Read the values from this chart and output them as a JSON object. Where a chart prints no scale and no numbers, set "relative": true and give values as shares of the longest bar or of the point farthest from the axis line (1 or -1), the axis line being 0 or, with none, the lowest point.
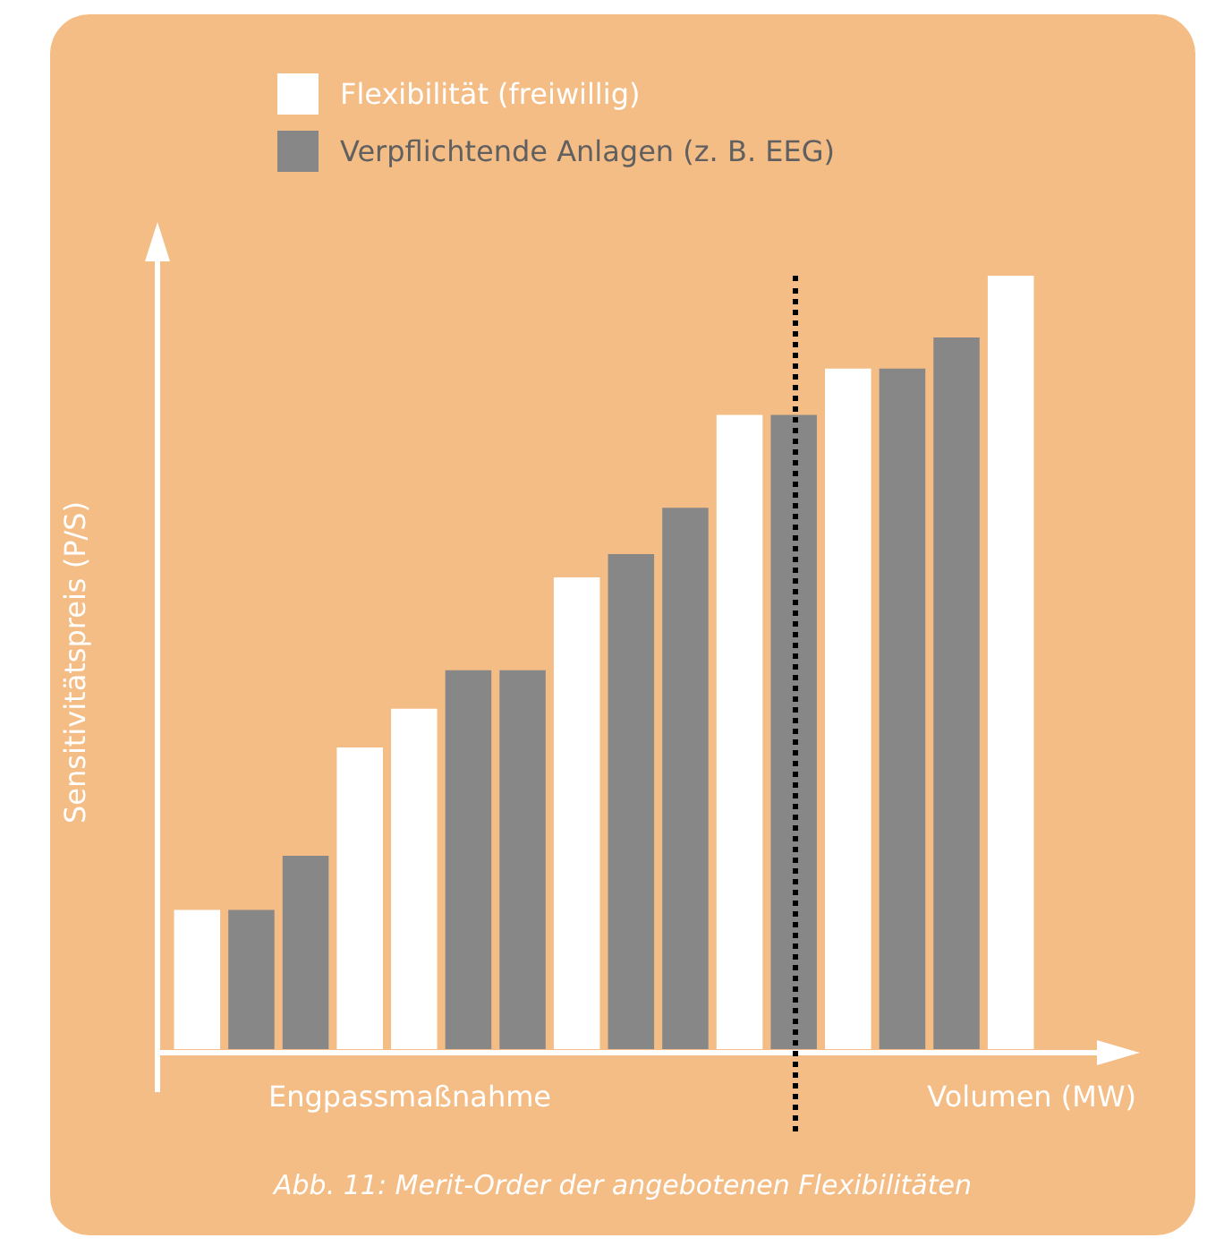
{
  "chart_data": {
    "type": "bar",
    "relative": true,
    "ylabel": "Sensitivitätspreis (P/S)",
    "xlabel": "Volumen (MW)",
    "categories": [
      null,
      null,
      null,
      null,
      null,
      null,
      null,
      null,
      null,
      null,
      null,
      null,
      null,
      null,
      null,
      null
    ],
    "series": [
      {
        "name": "Flexibilität (freiwillig)",
        "color": "#ffffff",
        "values": [
          0.18,
          null,
          null,
          0.39,
          0.44,
          null,
          null,
          0.61,
          null,
          null,
          0.82,
          null,
          0.88,
          null,
          null,
          1
        ]
      },
      {
        "name": "Verpflichtende Anlagen (z. B. EEG)",
        "color": "#878787",
        "values": [
          null,
          0.18,
          0.25,
          null,
          null,
          0.49,
          0.49,
          null,
          0.64,
          0.7,
          null,
          0.82,
          null,
          0.88,
          0.92,
          null
        ]
      }
    ],
    "legend": "top",
    "stacked": true,
    "annotations": [
      "Engpassmaßnahme",
      "Abb. 11: Merit-Order der angebotenen Flexibilitäten"
    ]
  }
}
